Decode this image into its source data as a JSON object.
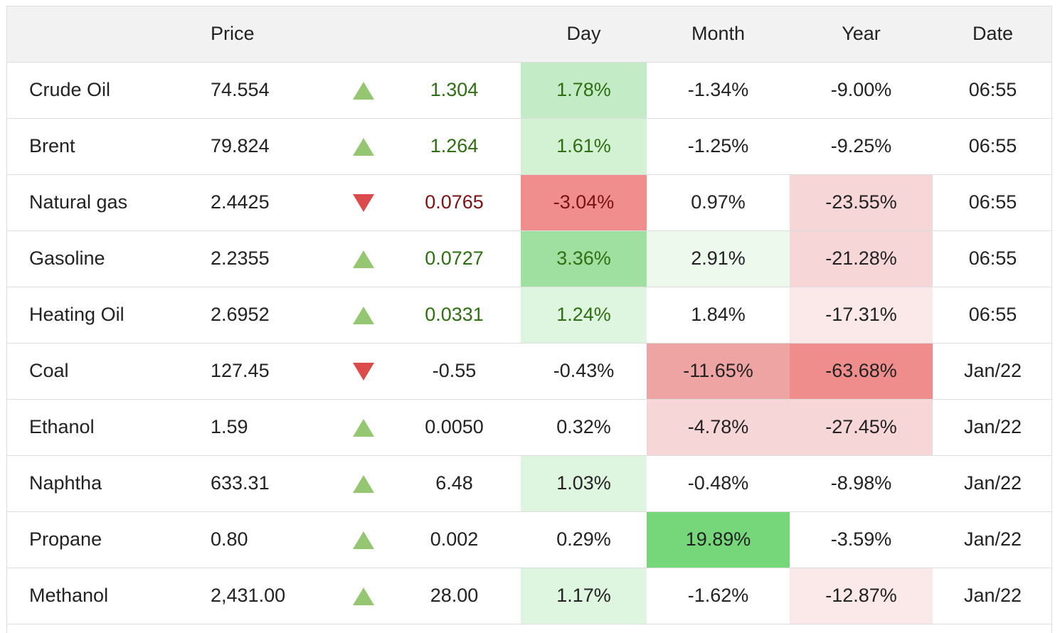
{
  "columns": {
    "name": "",
    "price": "Price",
    "arrow": "",
    "change": "",
    "day": "Day",
    "month": "Month",
    "year": "Year",
    "date": "Date"
  },
  "colors": {
    "up_arrow": "#95c672",
    "down_arrow": "#dc4b4b",
    "positive_text": "#2f6e12",
    "negative_text": "#7a1212"
  },
  "rows": [
    {
      "name": "Crude Oil",
      "price": "74.554",
      "direction": "up",
      "change": "1.304",
      "change_tone": "pos",
      "day": "1.78%",
      "month": "-1.34%",
      "year": "-9.00%",
      "date": "06:55",
      "day_bg": "#c3ecc6",
      "month_bg": "#ffffff",
      "year_bg": "#ffffff",
      "day_tone": "pos"
    },
    {
      "name": "Brent",
      "price": "79.824",
      "direction": "up",
      "change": "1.264",
      "change_tone": "pos",
      "day": "1.61%",
      "month": "-1.25%",
      "year": "-9.25%",
      "date": "06:55",
      "day_bg": "#d3f2d3",
      "month_bg": "#ffffff",
      "year_bg": "#ffffff",
      "day_tone": "pos"
    },
    {
      "name": "Natural gas",
      "price": "2.4425",
      "direction": "down",
      "change": "0.0765",
      "change_tone": "neg",
      "day": "-3.04%",
      "month": "0.97%",
      "year": "-23.55%",
      "date": "06:55",
      "day_bg": "#f08e8e",
      "month_bg": "#ffffff",
      "year_bg": "#f7d6d8",
      "day_tone": "neg"
    },
    {
      "name": "Gasoline",
      "price": "2.2355",
      "direction": "up",
      "change": "0.0727",
      "change_tone": "pos",
      "day": "3.36%",
      "month": "2.91%",
      "year": "-21.28%",
      "date": "06:55",
      "day_bg": "#9fe0a1",
      "month_bg": "#eef9ee",
      "year_bg": "#f7d6d8",
      "day_tone": "pos"
    },
    {
      "name": "Heating Oil",
      "price": "2.6952",
      "direction": "up",
      "change": "0.0331",
      "change_tone": "pos",
      "day": "1.24%",
      "month": "1.84%",
      "year": "-17.31%",
      "date": "06:55",
      "day_bg": "#def5df",
      "month_bg": "#ffffff",
      "year_bg": "#fbe9ea",
      "day_tone": "pos"
    },
    {
      "name": "Coal",
      "price": "127.45",
      "direction": "down",
      "change": "-0.55",
      "change_tone": "neu",
      "day": "-0.43%",
      "month": "-11.65%",
      "year": "-63.68%",
      "date": "Jan/22",
      "day_bg": "#ffffff",
      "month_bg": "#eea4a3",
      "year_bg": "#ef8c8c",
      "day_tone": "neu"
    },
    {
      "name": "Ethanol",
      "price": "1.59",
      "direction": "up",
      "change": "0.0050",
      "change_tone": "neu",
      "day": "0.32%",
      "month": "-4.78%",
      "year": "-27.45%",
      "date": "Jan/22",
      "day_bg": "#ffffff",
      "month_bg": "#f7d6d8",
      "year_bg": "#f7d6d8",
      "day_tone": "neu"
    },
    {
      "name": "Naphtha",
      "price": "633.31",
      "direction": "up",
      "change": "6.48",
      "change_tone": "neu",
      "day": "1.03%",
      "month": "-0.48%",
      "year": "-8.98%",
      "date": "Jan/22",
      "day_bg": "#def5df",
      "month_bg": "#ffffff",
      "year_bg": "#ffffff",
      "day_tone": "neu"
    },
    {
      "name": "Propane",
      "price": "0.80",
      "direction": "up",
      "change": "0.002",
      "change_tone": "neu",
      "day": "0.29%",
      "month": "19.89%",
      "year": "-3.59%",
      "date": "Jan/22",
      "day_bg": "#ffffff",
      "month_bg": "#75d779",
      "year_bg": "#ffffff",
      "day_tone": "neu"
    },
    {
      "name": "Methanol",
      "price": "2,431.00",
      "direction": "up",
      "change": "28.00",
      "change_tone": "neu",
      "day": "1.17%",
      "month": "-1.62%",
      "year": "-12.87%",
      "date": "Jan/22",
      "day_bg": "#def5df",
      "month_bg": "#ffffff",
      "year_bg": "#fbe9ea",
      "day_tone": "neu"
    }
  ]
}
